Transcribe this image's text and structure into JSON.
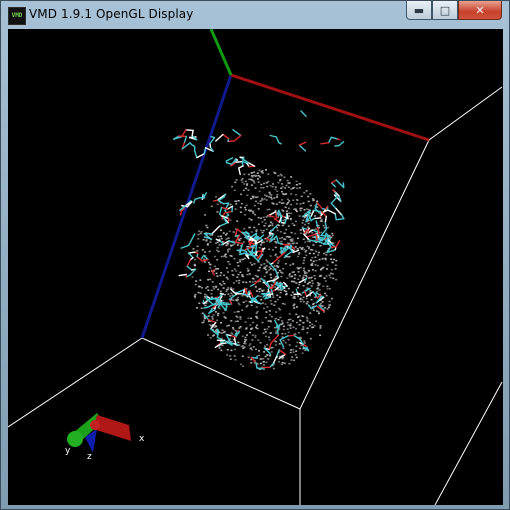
{
  "window": {
    "title": "VMD 1.9.1 OpenGL Display",
    "app_icon_text": "VMD",
    "controls": {
      "minimize": "▬",
      "maximize": "□",
      "close": "✕"
    }
  },
  "axes_indicator": {
    "x_label": "x",
    "y_label": "y",
    "z_label": "z"
  },
  "colors": {
    "background": "#000000",
    "box_edges": "#ffffff",
    "axis_x": "#b01010",
    "axis_y": "#119911",
    "axis_z": "#101a8c",
    "molecule_stick_primary": "#47c5cf",
    "molecule_stick_secondary": "#ffffff",
    "molecule_oxygen": "#d92b2b",
    "point_cloud": "#bdbdbd"
  }
}
